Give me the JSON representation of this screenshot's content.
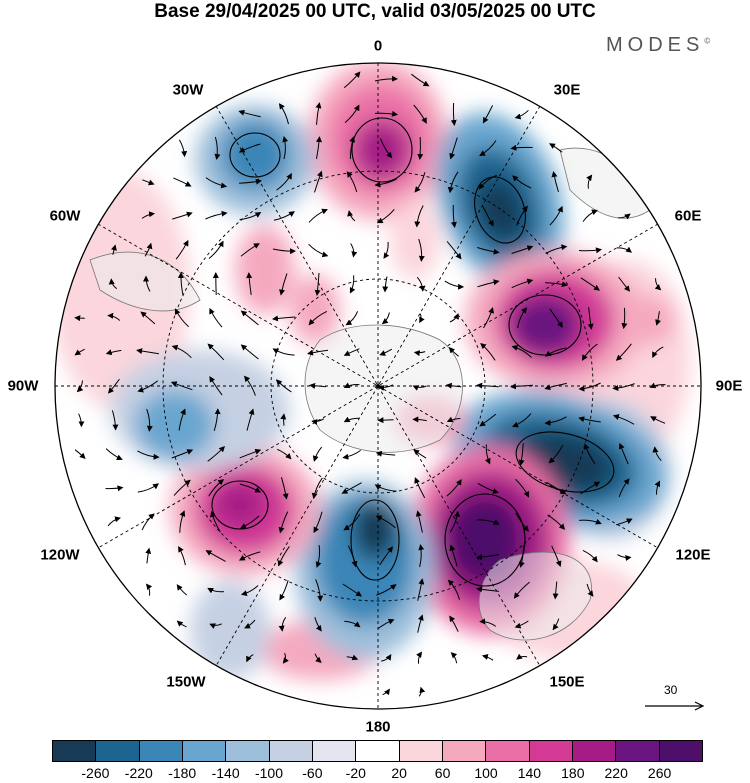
{
  "title": "Base 29/04/2025 00 UTC, valid 03/05/2025 00 UTC",
  "brand": {
    "name": "MODES",
    "mark": "©"
  },
  "longitude_labels": {
    "lon_0": "0",
    "lon_30e": "30E",
    "lon_60e": "60E",
    "lon_90e": "90E",
    "lon_120e": "120E",
    "lon_150e": "150E",
    "lon_180": "180",
    "lon_150w": "150W",
    "lon_120w": "120W",
    "lon_90w": "90W",
    "lon_60w": "60W",
    "lon_30w": "30W"
  },
  "reference_vector": {
    "label": "30"
  },
  "colorbar": {
    "colors": [
      "#173b56",
      "#1d6590",
      "#3a86b7",
      "#69a6cf",
      "#9dbfdb",
      "#c5d0e3",
      "#e5e5f0",
      "#ffffff",
      "#fbd6dc",
      "#f5a9bf",
      "#ea6fa6",
      "#d23a96",
      "#a51c86",
      "#6b1680",
      "#4d0f6a"
    ],
    "ticks": [
      "-260",
      "-220",
      "-180",
      "-140",
      "-100",
      "-60",
      "-20",
      "20",
      "60",
      "100",
      "140",
      "180",
      "220",
      "260"
    ]
  },
  "map_colors": {
    "land": "#ececec",
    "coast": "#777777",
    "grid": "#000000"
  }
}
